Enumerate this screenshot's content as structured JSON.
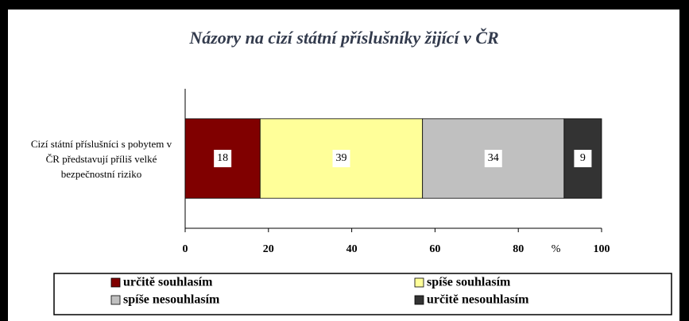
{
  "chart_data": {
    "type": "stacked_bar_horizontal",
    "title": "Názory na cizí státní příslušníky žijící v ČR",
    "categories": [
      "Cizí státní příslušníci s pobytem v ČR představují příliš velké bezpečnostní riziko"
    ],
    "series": [
      {
        "name": "určitě souhlasím",
        "color": "#800000",
        "values": [
          18
        ]
      },
      {
        "name": "spíše souhlasím",
        "color": "#ffff99",
        "values": [
          39
        ]
      },
      {
        "name": "spíše nesouhlasím",
        "color": "#c0c0c0",
        "values": [
          34
        ]
      },
      {
        "name": "určitě nesouhlasím",
        "color": "#333333",
        "values": [
          9
        ]
      }
    ],
    "x_label": "%",
    "xlim": [
      0,
      100
    ],
    "xticks": [
      0,
      20,
      40,
      60,
      80,
      100
    ],
    "data_labels": true
  }
}
